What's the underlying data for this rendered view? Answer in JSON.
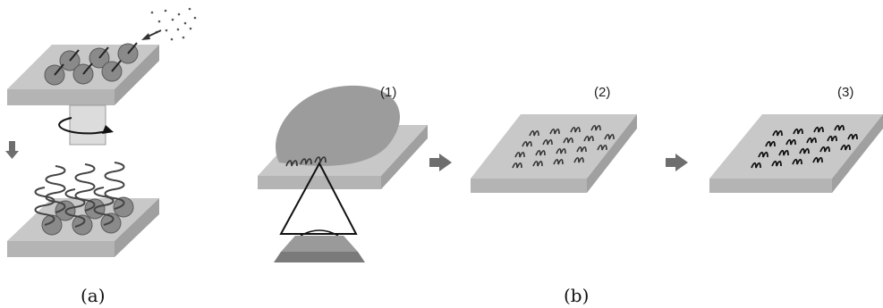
{
  "panels": [
    {
      "id": "a",
      "caption": "(a)"
    },
    {
      "id": "b",
      "caption": "(b)",
      "steps": [
        "(1)",
        "(2)",
        "(3)"
      ]
    }
  ],
  "colors": {
    "plate_top": "#c8c8c8",
    "plate_side": "#a8a8a8",
    "bead": "#8a8a8a",
    "drop": "#9c9c9c",
    "arrow": "#6e6e6e",
    "helix": "#444444",
    "objective": "#7a7a7a"
  }
}
